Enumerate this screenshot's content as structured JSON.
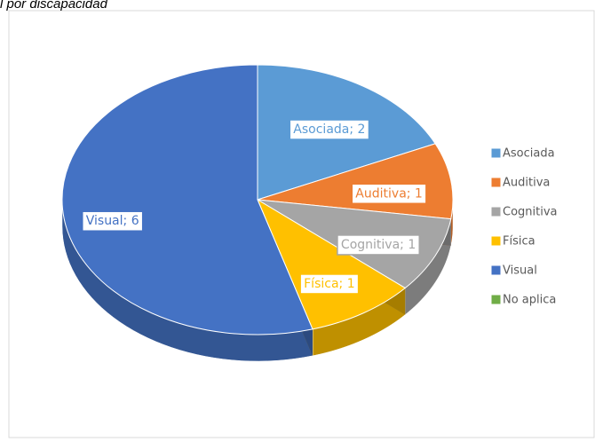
{
  "chart_data": {
    "type": "pie",
    "title": "l por discapacidad",
    "categories": [
      "Asociada",
      "Auditiva",
      "Cognitiva",
      "Física",
      "Visual",
      "No aplica"
    ],
    "values": [
      2,
      1,
      1,
      1,
      6,
      0
    ],
    "value_labels": [
      "Asociada; 2",
      "Auditiva; 1",
      "Cognitiva; 1",
      "Física; 1",
      "Visual; 6",
      null
    ],
    "colors": [
      "#5b9bd5",
      "#ed7d31",
      "#a5a5a5",
      "#ffc000",
      "#4472c4",
      "#70ad47"
    ],
    "legend": "right"
  }
}
